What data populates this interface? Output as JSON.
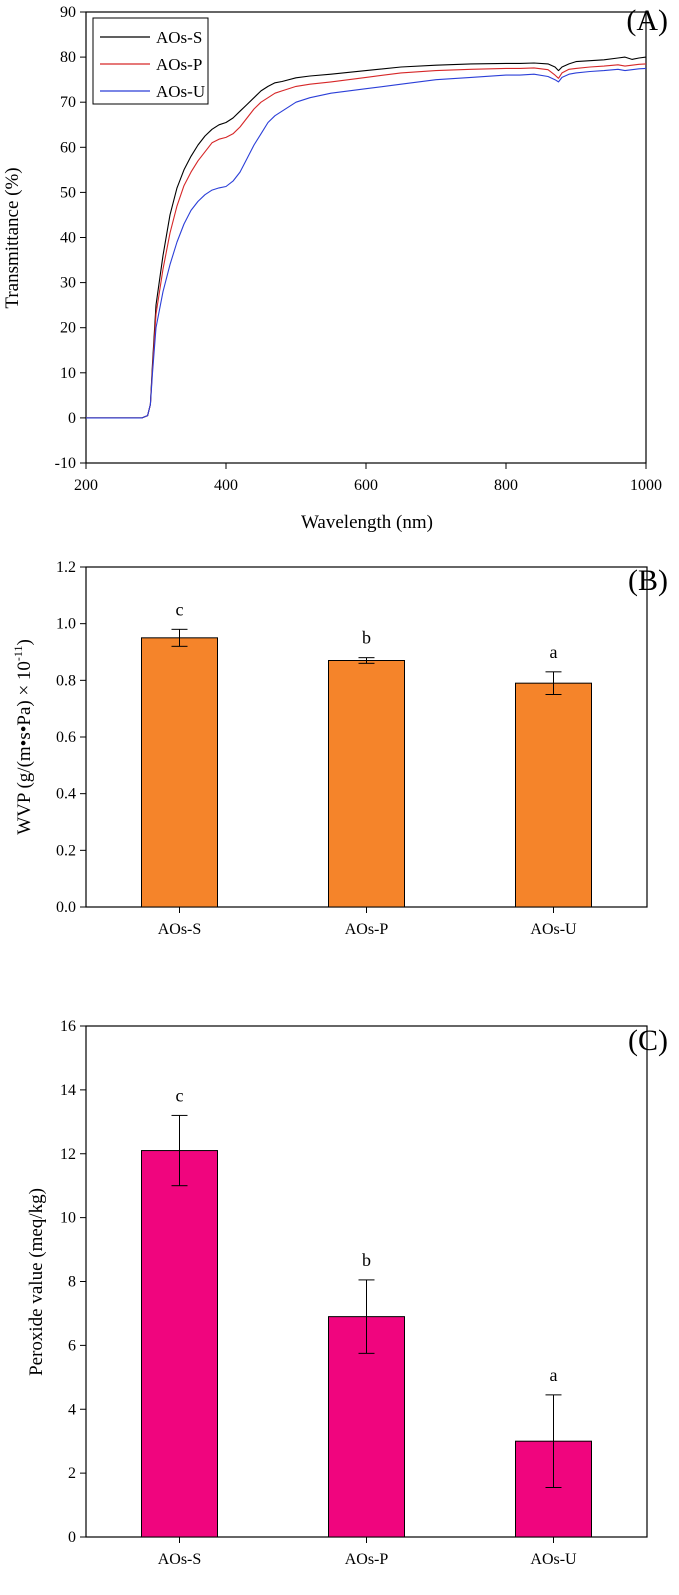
{
  "chart_data": [
    {
      "panel_label": "(A)",
      "type": "line",
      "xlabel": "Wavelength (nm)",
      "ylabel": "Transmittance (%)",
      "xlim": [
        200,
        1000
      ],
      "ylim": [
        -10,
        90
      ],
      "xticks": [
        200,
        400,
        600,
        800,
        1000
      ],
      "yticks": [
        -10,
        0,
        10,
        20,
        30,
        40,
        50,
        60,
        70,
        80,
        90
      ],
      "legend_position": "top-left",
      "series": [
        {
          "name": "AOs-S",
          "color": "#000000",
          "x": [
            200,
            280,
            288,
            292,
            295,
            300,
            310,
            320,
            330,
            340,
            350,
            360,
            370,
            380,
            390,
            400,
            410,
            420,
            430,
            440,
            450,
            460,
            470,
            480,
            500,
            520,
            550,
            600,
            650,
            700,
            750,
            800,
            820,
            840,
            860,
            870,
            875,
            880,
            890,
            900,
            920,
            940,
            960,
            970,
            980,
            990,
            1000
          ],
          "y": [
            0,
            0,
            0.5,
            3,
            12,
            25,
            36,
            45,
            51,
            55,
            58,
            60.5,
            62.5,
            64,
            65,
            65.5,
            66.5,
            68,
            69.5,
            71,
            72.5,
            73.5,
            74.3,
            74.6,
            75.4,
            75.8,
            76.2,
            77,
            77.8,
            78.2,
            78.5,
            78.6,
            78.6,
            78.7,
            78.5,
            77.8,
            77,
            77.8,
            78.5,
            79,
            79.2,
            79.4,
            79.8,
            80,
            79.5,
            79.8,
            80
          ]
        },
        {
          "name": "AOs-P",
          "color": "#d62728",
          "x": [
            200,
            280,
            288,
            292,
            295,
            300,
            310,
            320,
            330,
            340,
            350,
            360,
            370,
            380,
            390,
            400,
            410,
            420,
            430,
            440,
            450,
            460,
            470,
            480,
            500,
            520,
            550,
            600,
            650,
            700,
            750,
            800,
            820,
            840,
            860,
            870,
            875,
            880,
            890,
            900,
            920,
            940,
            960,
            970,
            980,
            990,
            1000
          ],
          "y": [
            0,
            0,
            0.5,
            3,
            11,
            23,
            33,
            41,
            47,
            51.5,
            54.5,
            57,
            59,
            61,
            61.8,
            62.2,
            63,
            64.5,
            66.5,
            68.5,
            70,
            71,
            72,
            72.5,
            73.5,
            74,
            74.5,
            75.5,
            76.5,
            77,
            77.3,
            77.5,
            77.5,
            77.6,
            77.2,
            76,
            75.3,
            76.5,
            77.3,
            77.5,
            77.8,
            78,
            78.3,
            78,
            78.2,
            78.4,
            78.5
          ]
        },
        {
          "name": "AOs-U",
          "color": "#2b3fd8",
          "x": [
            200,
            280,
            288,
            292,
            295,
            300,
            310,
            320,
            330,
            340,
            350,
            360,
            370,
            380,
            390,
            400,
            410,
            420,
            430,
            440,
            450,
            460,
            470,
            480,
            500,
            520,
            550,
            600,
            650,
            700,
            750,
            800,
            820,
            840,
            860,
            870,
            875,
            880,
            890,
            900,
            920,
            940,
            960,
            970,
            980,
            990,
            1000
          ],
          "y": [
            0,
            0,
            0.5,
            3,
            10,
            20,
            28,
            34,
            39,
            43,
            46,
            48,
            49.5,
            50.5,
            51,
            51.3,
            52.5,
            54.5,
            57.5,
            60.5,
            63,
            65.5,
            67,
            68,
            70,
            71,
            72,
            73,
            74,
            75,
            75.5,
            76,
            76,
            76.2,
            75.7,
            75,
            74.5,
            75.5,
            76.2,
            76.5,
            76.8,
            77,
            77.3,
            77,
            77.2,
            77.4,
            77.5
          ]
        }
      ]
    },
    {
      "panel_label": "(B)",
      "type": "bar",
      "ylabel_main": "WVP (g/(m•s•Pa) × 10",
      "ylabel_sup": "-11",
      "ylabel_end": ")",
      "categories": [
        "AOs-S",
        "AOs-P",
        "AOs-U"
      ],
      "values": [
        0.95,
        0.87,
        0.79
      ],
      "errors": [
        0.03,
        0.01,
        0.04
      ],
      "significance": [
        "c",
        "b",
        "a"
      ],
      "ylim": [
        0,
        1.2
      ],
      "yticks": [
        "0.0",
        "0.2",
        "0.4",
        "0.6",
        "0.8",
        "1.0",
        "1.2"
      ],
      "bar_color": "#f5842a"
    },
    {
      "panel_label": "(C)",
      "type": "bar",
      "ylabel": "Peroxide value (meq/kg)",
      "categories": [
        "AOs-S",
        "AOs-P",
        "AOs-U"
      ],
      "values": [
        12.1,
        6.9,
        3.0
      ],
      "errors": [
        1.1,
        1.15,
        1.45
      ],
      "significance": [
        "c",
        "b",
        "a"
      ],
      "ylim": [
        0,
        16
      ],
      "yticks": [
        "0",
        "2",
        "4",
        "6",
        "8",
        "10",
        "12",
        "14",
        "16"
      ],
      "bar_color": "#f0057e"
    }
  ]
}
